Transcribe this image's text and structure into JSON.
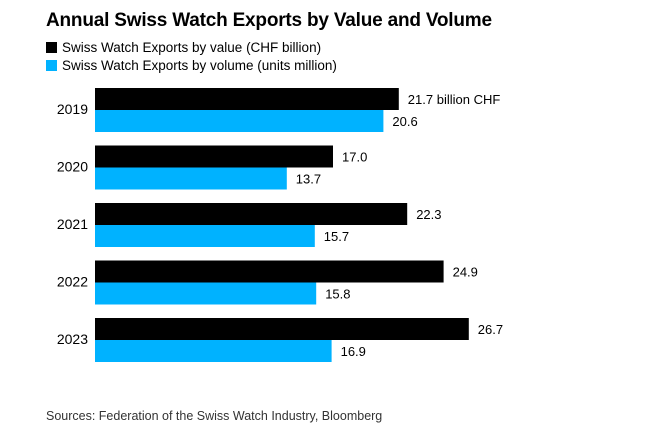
{
  "title": "Annual Swiss Watch Exports by Value and Volume",
  "source": "Sources: Federation of the Swiss Watch Industry, Bloomberg",
  "colors": {
    "value": "#000000",
    "volume": "#00b2ff"
  },
  "chart_data": {
    "type": "bar",
    "orientation": "horizontal",
    "title": "Annual Swiss Watch Exports by Value and Volume",
    "categories": [
      "2019",
      "2020",
      "2021",
      "2022",
      "2023"
    ],
    "series": [
      {
        "name": "Swiss Watch Exports by value (CHF billion)",
        "values": [
          21.7,
          17.0,
          22.3,
          24.9,
          26.7
        ],
        "labels": [
          "21.7 billion CHF",
          "17.0",
          "22.3",
          "24.9",
          "26.7"
        ]
      },
      {
        "name": "Swiss Watch Exports by volume (units million)",
        "values": [
          20.6,
          13.7,
          15.7,
          15.8,
          16.9
        ],
        "labels": [
          "20.6",
          "13.7",
          "15.7",
          "15.8",
          "16.9"
        ]
      }
    ],
    "xlim": [
      0,
      30
    ],
    "legend": "top-left",
    "grid": false
  }
}
